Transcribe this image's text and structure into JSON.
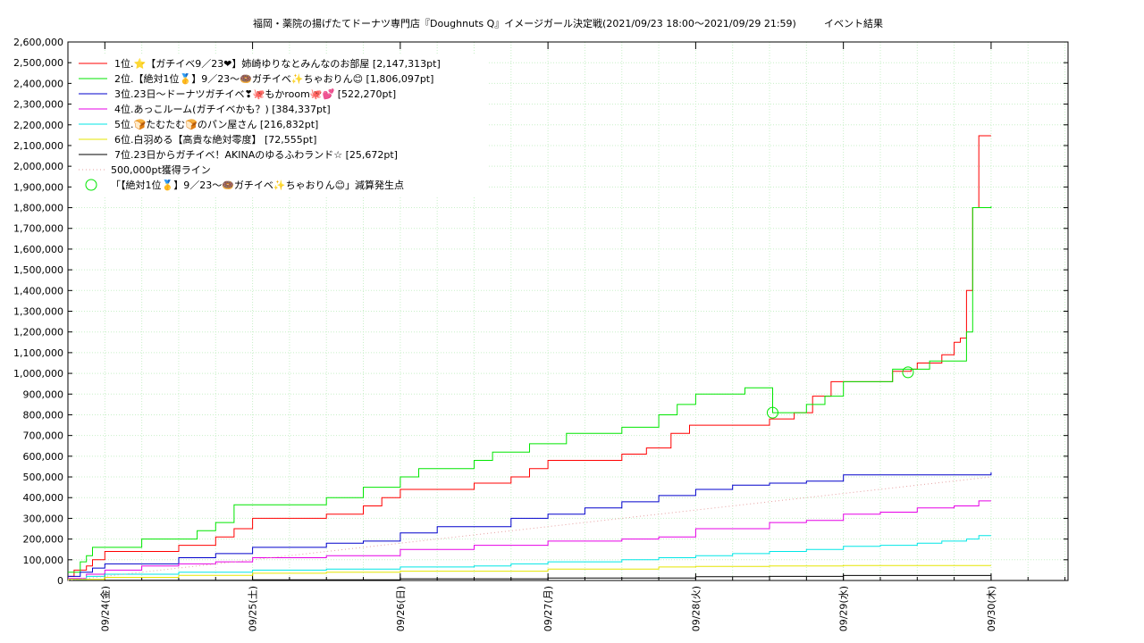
{
  "chart_data": {
    "type": "line",
    "title": "福岡・薬院の揚げたてドーナツ専門店『Doughnuts Q』イメージガール決定戦(2021/09/23 18:00～2021/09/29 21:59)",
    "subtitle": "イベント結果",
    "xlabel": "",
    "ylabel": "",
    "ylim": [
      0,
      2600000
    ],
    "yticks": [
      0,
      100000,
      200000,
      300000,
      400000,
      500000,
      600000,
      700000,
      800000,
      900000,
      1000000,
      1100000,
      1200000,
      1300000,
      1400000,
      1500000,
      1600000,
      1700000,
      1800000,
      1900000,
      2000000,
      2100000,
      2200000,
      2300000,
      2400000,
      2500000,
      2600000
    ],
    "ytick_labels": [
      "0",
      "100,000",
      "200,000",
      "300,000",
      "400,000",
      "500,000",
      "600,000",
      "700,000",
      "800,000",
      "900,000",
      "1,000,000",
      "1,100,000",
      "1,200,000",
      "1,300,000",
      "1,400,000",
      "1,500,000",
      "1,600,000",
      "1,700,000",
      "1,800,000",
      "1,900,000",
      "2,000,000",
      "2,100,000",
      "2,200,000",
      "2,300,000",
      "2,400,000",
      "2,500,000",
      "2,600,000"
    ],
    "xlim_hours": [
      -6,
      156.5
    ],
    "xticks": [
      {
        "label": "09/24(金)",
        "hour": 0
      },
      {
        "label": "09/25(土)",
        "hour": 24
      },
      {
        "label": "09/26(日)",
        "hour": 48
      },
      {
        "label": "09/27(月)",
        "hour": 72
      },
      {
        "label": "09/28(火)",
        "hour": 96
      },
      {
        "label": "09/29(水)",
        "hour": 120
      },
      {
        "label": "09/30(木)",
        "hour": 144
      }
    ],
    "grid": true,
    "legend_position": "top-left",
    "series": [
      {
        "name": "1位.⭐【ガチイベ9／23❤】姉崎ゆりなとみんなのお部屋 [2,147,313pt]",
        "color": "#ff0000",
        "step": true,
        "points": [
          [
            -6,
            20000
          ],
          [
            -5,
            50000
          ],
          [
            -3,
            70000
          ],
          [
            -2,
            100000
          ],
          [
            0,
            140000
          ],
          [
            6,
            140000
          ],
          [
            12,
            170000
          ],
          [
            18,
            210000
          ],
          [
            21,
            250000
          ],
          [
            24,
            300000
          ],
          [
            30,
            300000
          ],
          [
            36,
            320000
          ],
          [
            42,
            360000
          ],
          [
            45,
            400000
          ],
          [
            48,
            440000
          ],
          [
            54,
            440000
          ],
          [
            60,
            470000
          ],
          [
            66,
            500000
          ],
          [
            69,
            540000
          ],
          [
            72,
            580000
          ],
          [
            84,
            610000
          ],
          [
            88,
            640000
          ],
          [
            92,
            710000
          ],
          [
            95,
            750000
          ],
          [
            106,
            750000
          ],
          [
            108,
            780000
          ],
          [
            110,
            780000
          ],
          [
            112,
            810000
          ],
          [
            115,
            890000
          ],
          [
            118,
            960000
          ],
          [
            126,
            960000
          ],
          [
            128,
            1010000
          ],
          [
            131,
            1020000
          ],
          [
            132,
            1050000
          ],
          [
            136,
            1090000
          ],
          [
            138,
            1150000
          ],
          [
            139,
            1170000
          ],
          [
            140,
            1400000
          ],
          [
            141,
            1800000
          ],
          [
            142,
            2147313
          ],
          [
            144,
            2147313
          ]
        ]
      },
      {
        "name": "2位.【絶対1位🥇】9／23〜🍩ガチイベ✨ちゃおりん😊 [1,806,097pt]",
        "color": "#00e600",
        "step": true,
        "points": [
          [
            -6,
            40000
          ],
          [
            -4,
            90000
          ],
          [
            -3,
            120000
          ],
          [
            -2,
            160000
          ],
          [
            0,
            160000
          ],
          [
            6,
            200000
          ],
          [
            12,
            200000
          ],
          [
            15,
            240000
          ],
          [
            18,
            280000
          ],
          [
            21,
            365000
          ],
          [
            30,
            365000
          ],
          [
            36,
            400000
          ],
          [
            42,
            450000
          ],
          [
            48,
            500000
          ],
          [
            51,
            540000
          ],
          [
            60,
            580000
          ],
          [
            63,
            620000
          ],
          [
            69,
            660000
          ],
          [
            75,
            710000
          ],
          [
            84,
            740000
          ],
          [
            90,
            800000
          ],
          [
            93,
            850000
          ],
          [
            96,
            900000
          ],
          [
            102,
            900000
          ],
          [
            104,
            930000
          ],
          [
            108,
            930000
          ],
          [
            108.5,
            810000
          ],
          [
            111,
            810000
          ],
          [
            114,
            850000
          ],
          [
            117,
            890000
          ],
          [
            120,
            960000
          ],
          [
            126,
            960000
          ],
          [
            128,
            1020000
          ],
          [
            132,
            1020000
          ],
          [
            134,
            1060000
          ],
          [
            138,
            1060000
          ],
          [
            140,
            1200000
          ],
          [
            141,
            1800000
          ],
          [
            144,
            1806097
          ]
        ]
      },
      {
        "name": "3位.23日〜ドーナツガチイベ❣🐙もかroom🐙💕 [522,270pt]",
        "color": "#0000cc",
        "step": true,
        "points": [
          [
            -6,
            20000
          ],
          [
            -4,
            40000
          ],
          [
            -2,
            60000
          ],
          [
            0,
            80000
          ],
          [
            6,
            80000
          ],
          [
            12,
            110000
          ],
          [
            18,
            130000
          ],
          [
            24,
            160000
          ],
          [
            30,
            160000
          ],
          [
            36,
            180000
          ],
          [
            42,
            190000
          ],
          [
            48,
            230000
          ],
          [
            54,
            260000
          ],
          [
            60,
            260000
          ],
          [
            66,
            300000
          ],
          [
            72,
            320000
          ],
          [
            78,
            350000
          ],
          [
            84,
            380000
          ],
          [
            90,
            410000
          ],
          [
            96,
            440000
          ],
          [
            102,
            460000
          ],
          [
            108,
            470000
          ],
          [
            114,
            480000
          ],
          [
            120,
            510000
          ],
          [
            132,
            510000
          ],
          [
            144,
            522270
          ]
        ]
      },
      {
        "name": "4位.あっこルーム(ガチイベかも？) [384,337pt]",
        "color": "#e600e6",
        "step": true,
        "points": [
          [
            -6,
            10000
          ],
          [
            -3,
            30000
          ],
          [
            0,
            50000
          ],
          [
            6,
            70000
          ],
          [
            12,
            80000
          ],
          [
            18,
            90000
          ],
          [
            24,
            110000
          ],
          [
            36,
            120000
          ],
          [
            48,
            150000
          ],
          [
            60,
            170000
          ],
          [
            72,
            190000
          ],
          [
            84,
            200000
          ],
          [
            90,
            210000
          ],
          [
            96,
            250000
          ],
          [
            108,
            280000
          ],
          [
            114,
            290000
          ],
          [
            120,
            320000
          ],
          [
            126,
            330000
          ],
          [
            132,
            350000
          ],
          [
            138,
            360000
          ],
          [
            142,
            384337
          ],
          [
            144,
            384337
          ]
        ]
      },
      {
        "name": "5位.🍞たむたむ🍞のパン屋さん [216,832pt]",
        "color": "#00e6e6",
        "step": true,
        "points": [
          [
            -6,
            5000
          ],
          [
            -3,
            20000
          ],
          [
            0,
            30000
          ],
          [
            12,
            40000
          ],
          [
            24,
            50000
          ],
          [
            36,
            55000
          ],
          [
            48,
            65000
          ],
          [
            60,
            70000
          ],
          [
            66,
            80000
          ],
          [
            72,
            90000
          ],
          [
            84,
            100000
          ],
          [
            90,
            110000
          ],
          [
            96,
            120000
          ],
          [
            102,
            130000
          ],
          [
            108,
            140000
          ],
          [
            114,
            150000
          ],
          [
            120,
            165000
          ],
          [
            126,
            170000
          ],
          [
            132,
            180000
          ],
          [
            136,
            190000
          ],
          [
            140,
            200000
          ],
          [
            142,
            216832
          ],
          [
            144,
            216832
          ]
        ]
      },
      {
        "name": "6位.白羽める【高貴な絶対零度】 [72,555pt]",
        "color": "#e6e600",
        "step": true,
        "points": [
          [
            -6,
            5000
          ],
          [
            0,
            15000
          ],
          [
            12,
            25000
          ],
          [
            24,
            35000
          ],
          [
            36,
            40000
          ],
          [
            48,
            45000
          ],
          [
            72,
            55000
          ],
          [
            90,
            65000
          ],
          [
            96,
            68000
          ],
          [
            108,
            70000
          ],
          [
            120,
            72000
          ],
          [
            132,
            72555
          ],
          [
            144,
            72555
          ]
        ]
      },
      {
        "name": "7位.23日からガチイベ！AKINAのゆるふわランド☆ [25,672pt]",
        "color": "#000000",
        "step": true,
        "points": [
          [
            -6,
            0
          ],
          [
            0,
            1000
          ],
          [
            24,
            3000
          ],
          [
            48,
            8000
          ],
          [
            72,
            12000
          ],
          [
            96,
            18000
          ],
          [
            108,
            20000
          ],
          [
            120,
            24000
          ],
          [
            144,
            25672
          ]
        ]
      },
      {
        "name": "500,000pt獲得ライン",
        "color": "#e6a0a0",
        "dotted": true,
        "step": false,
        "points": [
          [
            -6,
            0
          ],
          [
            144,
            500000
          ]
        ]
      }
    ],
    "annotations": [
      {
        "name": "「【絶対1位🥇】9／23〜🍩ガチイベ✨ちゃおりん😊」減算発生点",
        "color": "#00e600",
        "marker": "circle",
        "points": [
          [
            108.5,
            810000
          ],
          [
            130.5,
            1005000
          ]
        ]
      }
    ]
  }
}
